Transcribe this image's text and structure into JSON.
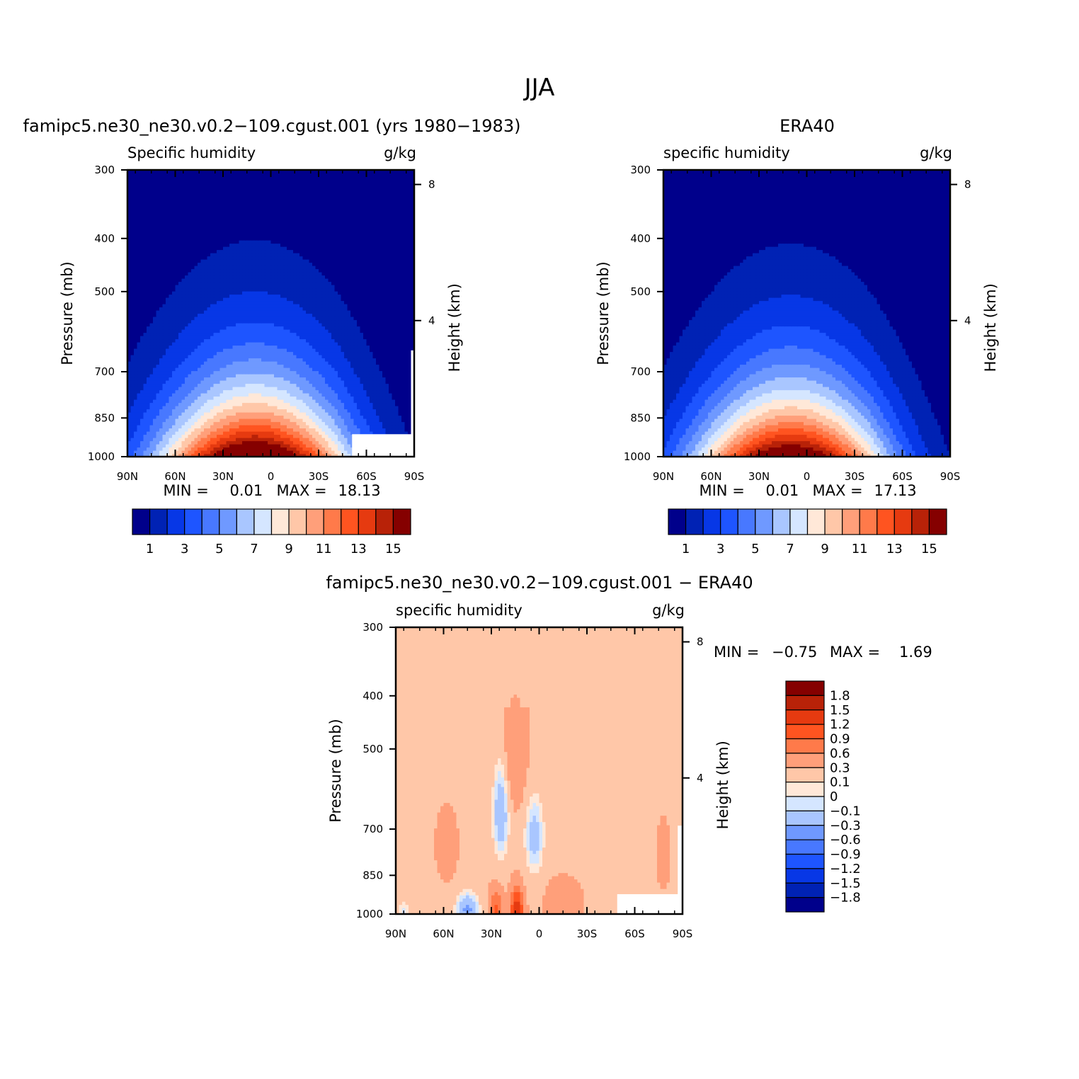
{
  "figure": {
    "title": "JJA"
  },
  "chart_data": [
    {
      "type": "heatmap",
      "title": "famipc5.ne30_ne30.v0.2−109.cgust.001 (yrs 1980−1983)",
      "left_label": "Specific humidity",
      "units": "g/kg",
      "ylabel": "Pressure (mb)",
      "ylabel_right": "Height (km)",
      "x_ticks": [
        "90N",
        "60N",
        "30N",
        "0",
        "30S",
        "60S",
        "90S"
      ],
      "y_ticks": [
        "300",
        "400",
        "500",
        "700",
        "850",
        "1000"
      ],
      "y_right_ticks": [
        "8",
        "4"
      ],
      "min_text": "MIN =",
      "min_value": "0.01",
      "max_text": "MAX =",
      "max_value": "18.13",
      "min": 0.01,
      "max": 18.13,
      "colorbar_labels": [
        "1",
        "3",
        "5",
        "7",
        "9",
        "11",
        "13",
        "15"
      ],
      "colors": [
        "#00008b",
        "#0022b4",
        "#0737e6",
        "#1e55ff",
        "#4878ff",
        "#6f99ff",
        "#a9c6ff",
        "#d5e6ff",
        "#ffe8d8",
        "#ffc7a8",
        "#ff9f7a",
        "#ff7a4a",
        "#ff5420",
        "#e63a10",
        "#b82208",
        "#850000"
      ],
      "missing_region": "lower right near 60S–90S below ~900 mb",
      "xlim": [
        90,
        -90
      ],
      "ylim": [
        1000,
        300
      ]
    },
    {
      "type": "heatmap",
      "title": "ERA40",
      "left_label": "specific humidity",
      "units": "g/kg",
      "ylabel": "Pressure (mb)",
      "ylabel_right": "Height (km)",
      "x_ticks": [
        "90N",
        "60N",
        "30N",
        "0",
        "30S",
        "60S",
        "90S"
      ],
      "y_ticks": [
        "300",
        "400",
        "500",
        "700",
        "850",
        "1000"
      ],
      "y_right_ticks": [
        "8",
        "4"
      ],
      "min_text": "MIN =",
      "min_value": "0.01",
      "max_text": "MAX =",
      "max_value": "17.13",
      "min": 0.01,
      "max": 17.13,
      "colorbar_labels": [
        "1",
        "3",
        "5",
        "7",
        "9",
        "11",
        "13",
        "15"
      ],
      "colors": [
        "#00008b",
        "#0022b4",
        "#0737e6",
        "#1e55ff",
        "#4878ff",
        "#6f99ff",
        "#a9c6ff",
        "#d5e6ff",
        "#ffe8d8",
        "#ffc7a8",
        "#ff9f7a",
        "#ff7a4a",
        "#ff5420",
        "#e63a10",
        "#b82208",
        "#850000"
      ],
      "xlim": [
        90,
        -90
      ],
      "ylim": [
        1000,
        300
      ]
    },
    {
      "type": "heatmap",
      "title": "famipc5.ne30_ne30.v0.2−109.cgust.001 − ERA40",
      "left_label": "specific humidity",
      "units": "g/kg",
      "ylabel": "Pressure (mb)",
      "ylabel_right": "Height (km)",
      "x_ticks": [
        "90N",
        "60N",
        "30N",
        "0",
        "30S",
        "60S",
        "90S"
      ],
      "y_ticks": [
        "300",
        "400",
        "500",
        "700",
        "850",
        "1000"
      ],
      "y_right_ticks": [
        "8",
        "4"
      ],
      "min_text": "MIN =",
      "min_value": "−0.75",
      "max_text": "MAX =",
      "max_value": "1.69",
      "min": -0.75,
      "max": 1.69,
      "colorbar_labels": [
        "1.8",
        "1.5",
        "1.2",
        "0.9",
        "0.6",
        "0.3",
        "0.1",
        "0",
        "−0.1",
        "−0.3",
        "−0.6",
        "−0.9",
        "−1.2",
        "−1.5",
        "−1.8"
      ],
      "colors": [
        "#850000",
        "#b82208",
        "#e63a10",
        "#ff5420",
        "#ff7a4a",
        "#ff9f7a",
        "#ffc7a8",
        "#ffe8d8",
        "#d5e6ff",
        "#a9c6ff",
        "#6f99ff",
        "#4878ff",
        "#1e55ff",
        "#0737e6",
        "#0022b4",
        "#00008b"
      ],
      "xlim": [
        90,
        -90
      ],
      "ylim": [
        1000,
        300
      ]
    }
  ]
}
